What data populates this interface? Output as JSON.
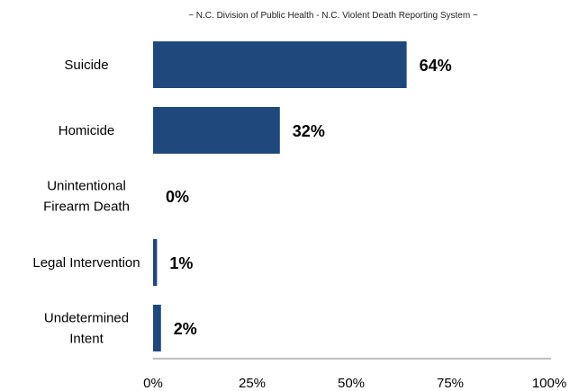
{
  "chart_data": {
    "type": "bar",
    "orientation": "horizontal",
    "subtitle": "~ N.C. Division of Public Health - N.C. Violent Death Reporting System ~",
    "categories": [
      [
        "Suicide"
      ],
      [
        "Homicide"
      ],
      [
        "Unintentional",
        "Firearm Death"
      ],
      [
        "Legal Intervention"
      ],
      [
        "Undetermined",
        "Intent"
      ]
    ],
    "values": [
      64,
      32,
      0,
      1,
      2
    ],
    "value_labels": [
      "64%",
      "32%",
      "0%",
      "1%",
      "2%"
    ],
    "xlim": [
      0,
      100
    ],
    "xticks": [
      0,
      25,
      50,
      75,
      100
    ],
    "xtick_labels": [
      "0%",
      "25%",
      "50%",
      "75%",
      "100%"
    ],
    "bar_color": "#1F497D",
    "grid": false,
    "legend": "none"
  }
}
